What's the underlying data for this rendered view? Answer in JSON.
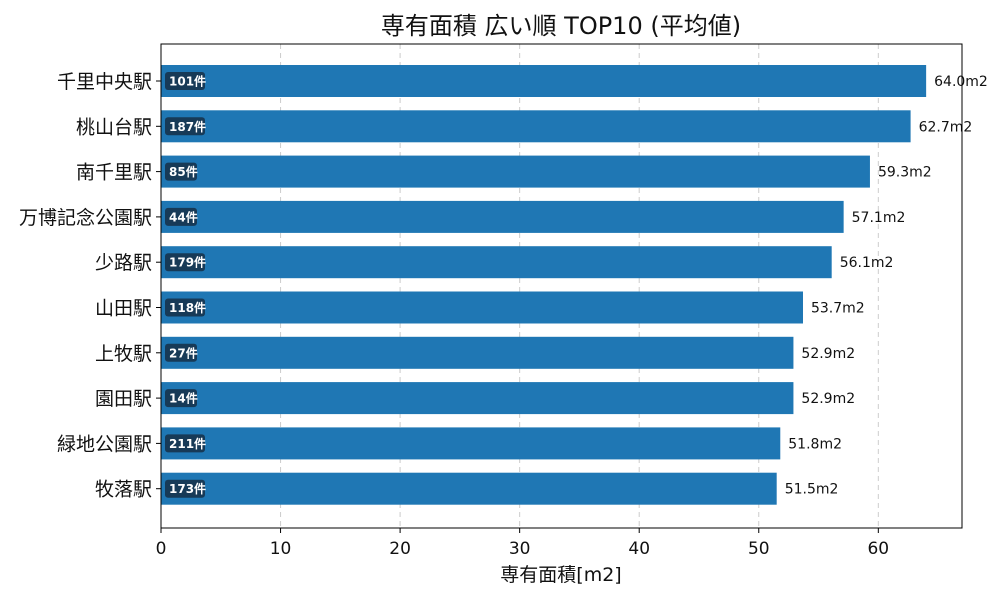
{
  "chart_data": {
    "type": "bar",
    "orientation": "horizontal",
    "title": "専有面積 広い順 TOP10 (平均値)",
    "xlabel": "専有面積[m2]",
    "ylabel": "",
    "xlim": [
      0,
      67
    ],
    "x_ticks": [
      0,
      10,
      20,
      30,
      40,
      50,
      60
    ],
    "grid": "x-dashed",
    "bar_color": "#1f77b4",
    "count_badge_color": "#173a57",
    "categories": [
      "千里中央駅",
      "桃山台駅",
      "南千里駅",
      "万博記念公園駅",
      "少路駅",
      "山田駅",
      "上牧駅",
      "園田駅",
      "緑地公園駅",
      "牧落駅"
    ],
    "values": [
      64.0,
      62.7,
      59.3,
      57.1,
      56.1,
      53.7,
      52.9,
      52.9,
      51.8,
      51.5
    ],
    "value_labels": [
      "64.0m2",
      "62.7m2",
      "59.3m2",
      "57.1m2",
      "56.1m2",
      "53.7m2",
      "52.9m2",
      "52.9m2",
      "51.8m2",
      "51.5m2"
    ],
    "counts": [
      "101件",
      "187件",
      "85件",
      "44件",
      "179件",
      "118件",
      "27件",
      "14件",
      "211件",
      "173件"
    ]
  }
}
